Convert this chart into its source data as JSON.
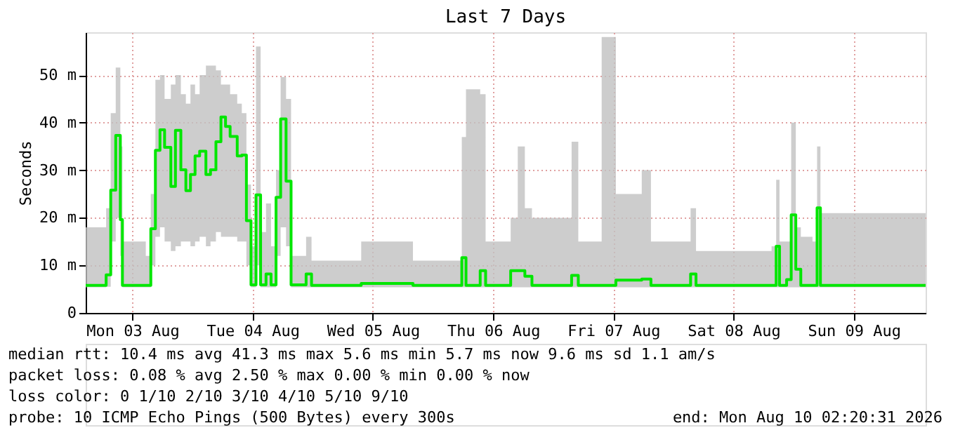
{
  "chart_data": {
    "type": "step",
    "title": "Last 7 Days",
    "ylabel": "Seconds",
    "xlim": [
      "2026-08-03T02:40",
      "2026-08-10T02:20"
    ],
    "xticks": [
      {
        "value": "2026-08-03T12:00",
        "label": "Mon 03 Aug"
      },
      {
        "value": "2026-08-04T12:00",
        "label": "Tue 04 Aug"
      },
      {
        "value": "2026-08-05T12:00",
        "label": "Wed 05 Aug"
      },
      {
        "value": "2026-08-06T12:00",
        "label": "Thu 06 Aug"
      },
      {
        "value": "2026-08-07T12:00",
        "label": "Fri 07 Aug"
      },
      {
        "value": "2026-08-08T12:00",
        "label": "Sat 08 Aug"
      },
      {
        "value": "2026-08-09T12:00",
        "label": "Sun 09 Aug"
      }
    ],
    "ylim": [
      0,
      59
    ],
    "yticks": [
      0,
      {
        "value": 10,
        "label": "10 m"
      },
      {
        "value": 20,
        "label": "20 m"
      },
      {
        "value": 30,
        "label": "30 m"
      },
      {
        "value": 40,
        "label": "40 m"
      },
      {
        "value": 50,
        "label": "50 m"
      }
    ],
    "grid": true,
    "line_style": "solid",
    "x": [
      "2026-08-03T02:40",
      "2026-08-03T06:20",
      "2026-08-03T06:45",
      "2026-08-03T07:40",
      "2026-08-03T08:40",
      "2026-08-03T09:35",
      "2026-08-03T10:00",
      "2026-08-03T14:40",
      "2026-08-03T15:40",
      "2026-08-03T16:35",
      "2026-08-03T17:30",
      "2026-08-03T18:25",
      "2026-08-03T19:40",
      "2026-08-03T20:35",
      "2026-08-03T21:40",
      "2026-08-03T22:40",
      "2026-08-03T23:35",
      "2026-08-04T00:30",
      "2026-08-04T01:25",
      "2026-08-04T02:40",
      "2026-08-04T03:35",
      "2026-08-04T04:40",
      "2026-08-04T05:40",
      "2026-08-04T06:35",
      "2026-08-04T07:30",
      "2026-08-04T08:55",
      "2026-08-04T09:50",
      "2026-08-04T10:45",
      "2026-08-04T11:40",
      "2026-08-04T12:40",
      "2026-08-04T13:35",
      "2026-08-04T14:40",
      "2026-08-04T15:40",
      "2026-08-04T16:40",
      "2026-08-04T17:35",
      "2026-08-04T18:40",
      "2026-08-04T19:40",
      "2026-08-04T22:40",
      "2026-08-04T23:45",
      "2026-08-05T09:40",
      "2026-08-05T20:00",
      "2026-08-06T05:45",
      "2026-08-06T06:35",
      "2026-08-06T09:25",
      "2026-08-06T10:30",
      "2026-08-06T15:30",
      "2026-08-06T16:55",
      "2026-08-06T18:20",
      "2026-08-06T19:45",
      "2026-08-07T03:40",
      "2026-08-07T05:00",
      "2026-08-07T09:40",
      "2026-08-07T12:30",
      "2026-08-07T17:40",
      "2026-08-07T19:30",
      "2026-08-08T03:25",
      "2026-08-08T04:30",
      "2026-08-08T19:35",
      "2026-08-08T20:30",
      "2026-08-08T21:10",
      "2026-08-08T22:35",
      "2026-08-08T23:30",
      "2026-08-09T00:25",
      "2026-08-09T01:25",
      "2026-08-09T03:45",
      "2026-08-09T04:40",
      "2026-08-09T05:20",
      "2026-08-10T02:20"
    ],
    "series": [
      {
        "color": "#00e600",
        "values": [
          5.8,
          5.8,
          8,
          25.8,
          37.3,
          19.6,
          5.8,
          5.8,
          17.7,
          34.2,
          38.5,
          34.8,
          26.6,
          38.4,
          30.1,
          25.7,
          29.1,
          33,
          34,
          29.1,
          30.1,
          36,
          41.2,
          39.2,
          37.1,
          33,
          33.2,
          19.4,
          5.9,
          24.8,
          5.9,
          8.2,
          5.9,
          24.3,
          40.8,
          27.7,
          5.9,
          8.2,
          5.8,
          6.2,
          5.8,
          11.6,
          5.8,
          8.9,
          5.8,
          8.9,
          8.9,
          7.7,
          5.8,
          7.9,
          5.8,
          5.8,
          6.9,
          7.1,
          5.8,
          8.2,
          5.8,
          5.8,
          14,
          5.8,
          7,
          20.6,
          9.2,
          5.8,
          5.8,
          22.1,
          5.8,
          5.8
        ],
        "lower": [
          5.4,
          5.4,
          5.5,
          15,
          20,
          12,
          5.4,
          5.4,
          10,
          16,
          18,
          15,
          13,
          14,
          15,
          15,
          14,
          15,
          16,
          14,
          15,
          17,
          16,
          16,
          16,
          15,
          15,
          10,
          5.4,
          10,
          5.4,
          5.4,
          5.4,
          12,
          18,
          14,
          5.4,
          5.4,
          5.4,
          5.4,
          5.4,
          5.4,
          5.4,
          5.4,
          5.4,
          5.4,
          5.4,
          5.4,
          5.4,
          5.4,
          5.4,
          5.4,
          5.4,
          5.4,
          5.4,
          5.4,
          5.4,
          5.4,
          5.4,
          5.4,
          5.4,
          5.4,
          5.4,
          5.4,
          5.4,
          5.4,
          5.4,
          5.4
        ],
        "upper": [
          18,
          18,
          22,
          42,
          51.6,
          35,
          15,
          12,
          25,
          49,
          50,
          45,
          48,
          50,
          46,
          44,
          48,
          46,
          50,
          52,
          52,
          51,
          48,
          48,
          46,
          44,
          42,
          27,
          14,
          56,
          17,
          23,
          14,
          30,
          49.6,
          45,
          12,
          16,
          11,
          15,
          11,
          37,
          47,
          46,
          15,
          20,
          35,
          22,
          20,
          36,
          15,
          58,
          25,
          30,
          15,
          22,
          13,
          14,
          28,
          15,
          15,
          40,
          18,
          16,
          15,
          35,
          21,
          18
        ]
      }
    ],
    "annotations": [
      "median rtt:  10.4 ms avg  41.3 ms max   5.6 ms min   5.7 ms now   9.6 ms sd  1.1   am/s",
      "packet loss: 0.08 % avg  2.50 % max  0.00 % min  0.00 % now",
      "loss color:  0   1/10   2/10   3/10   4/10   5/10   9/10",
      "probe:       10 ICMP Echo Pings (500 Bytes) every 300s",
      "end: Mon Aug 10 02:20:31 2026"
    ]
  }
}
